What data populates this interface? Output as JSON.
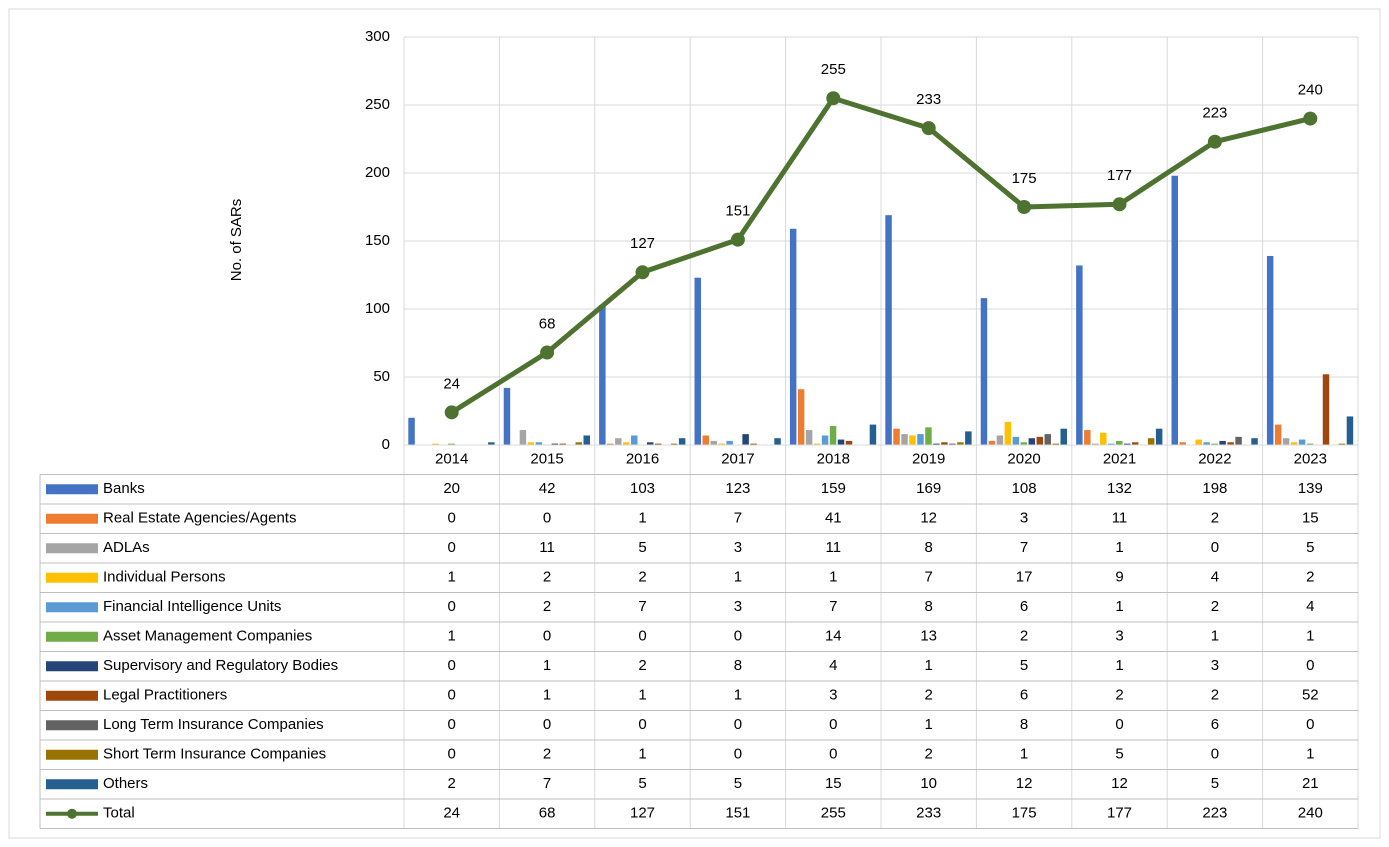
{
  "chart_data": {
    "type": "bar",
    "y_label": "No. of SARs",
    "categories": [
      "2014",
      "2015",
      "2016",
      "2017",
      "2018",
      "2019",
      "2020",
      "2021",
      "2022",
      "2023"
    ],
    "ylim": [
      0,
      300
    ],
    "yticks": [
      0,
      50,
      100,
      150,
      200,
      250,
      300
    ],
    "grid": true,
    "series": [
      {
        "name": "Banks",
        "color": "#4472c4",
        "values": [
          20,
          42,
          103,
          123,
          159,
          169,
          108,
          132,
          198,
          139
        ]
      },
      {
        "name": "Real Estate Agencies/Agents",
        "color": "#ed7d31",
        "values": [
          0,
          0,
          1,
          7,
          41,
          12,
          3,
          11,
          2,
          15
        ]
      },
      {
        "name": "ADLAs",
        "color": "#a5a5a5",
        "values": [
          0,
          11,
          5,
          3,
          11,
          8,
          7,
          1,
          0,
          5
        ]
      },
      {
        "name": "Individual Persons",
        "color": "#ffc000",
        "values": [
          1,
          2,
          2,
          1,
          1,
          7,
          17,
          9,
          4,
          2
        ]
      },
      {
        "name": "Financial Intelligence Units",
        "color": "#5b9bd5",
        "values": [
          0,
          2,
          7,
          3,
          7,
          8,
          6,
          1,
          2,
          4
        ]
      },
      {
        "name": "Asset Management Companies",
        "color": "#70ad47",
        "values": [
          1,
          0,
          0,
          0,
          14,
          13,
          2,
          3,
          1,
          1
        ]
      },
      {
        "name": "Supervisory and Regulatory Bodies",
        "color": "#264478",
        "values": [
          0,
          1,
          2,
          8,
          4,
          1,
          5,
          1,
          3,
          0
        ]
      },
      {
        "name": "Legal Practitioners",
        "color": "#9e480e",
        "values": [
          0,
          1,
          1,
          1,
          3,
          2,
          6,
          2,
          2,
          52
        ]
      },
      {
        "name": "Long Term Insurance Companies",
        "color": "#636363",
        "values": [
          0,
          0,
          0,
          0,
          0,
          1,
          8,
          0,
          6,
          0
        ]
      },
      {
        "name": "Short Term Insurance Companies",
        "color": "#997300",
        "values": [
          0,
          2,
          1,
          0,
          0,
          2,
          1,
          5,
          0,
          1
        ]
      },
      {
        "name": "Others",
        "color": "#255e91",
        "values": [
          2,
          7,
          5,
          5,
          15,
          10,
          12,
          12,
          5,
          21
        ]
      },
      {
        "name": "Total",
        "color": "#4e7330",
        "type": "line",
        "values": [
          24,
          68,
          127,
          151,
          255,
          233,
          175,
          177,
          223,
          240
        ]
      }
    ]
  }
}
